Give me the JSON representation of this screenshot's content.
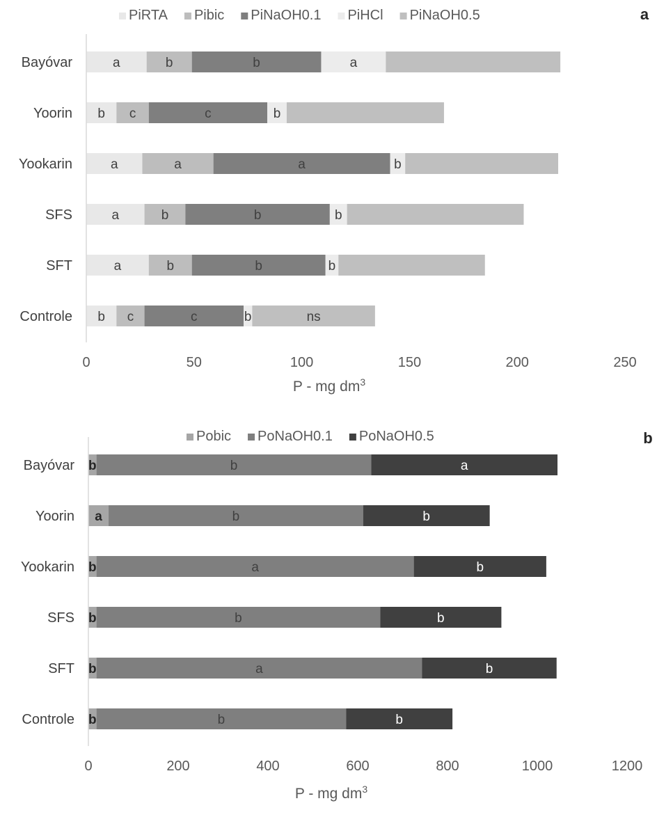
{
  "chart_data": [
    {
      "type": "bar",
      "orientation": "horizontal",
      "stacked": true,
      "panel_label": "a",
      "title": "",
      "xlabel": "P - mg dm",
      "xlabel_superscript": "3",
      "ylabel": "",
      "xlim": [
        0,
        250
      ],
      "xticks": [
        0,
        50,
        100,
        150,
        200,
        250
      ],
      "grid": false,
      "legend_position": "top",
      "categories": [
        "Bayóvar",
        "Yoorin",
        "Yookarin",
        "SFS",
        "SFT",
        "Controle"
      ],
      "series": [
        {
          "name": "PiRTA",
          "color": "#e8e8e8",
          "label_color": "#404040",
          "values": [
            28,
            14,
            26,
            27,
            29,
            14
          ],
          "labels": [
            "a",
            "b",
            "a",
            "a",
            "a",
            "b"
          ]
        },
        {
          "name": "Pibic",
          "color": "#bdbdbd",
          "label_color": "#404040",
          "values": [
            21,
            15,
            33,
            19,
            20,
            13
          ],
          "labels": [
            "b",
            "c",
            "a",
            "b",
            "b",
            "c"
          ]
        },
        {
          "name": "PiNaOH0.1",
          "color": "#7f7f7f",
          "label_color": "#404040",
          "values": [
            60,
            55,
            82,
            67,
            62,
            46
          ],
          "labels": [
            "b",
            "c",
            "a",
            "b",
            "b",
            "c"
          ]
        },
        {
          "name": "PiHCl",
          "color": "#ececec",
          "label_color": "#404040",
          "values": [
            30,
            9,
            7,
            8,
            6,
            4
          ],
          "labels": [
            "a",
            "b",
            "b",
            "b",
            "b",
            "b"
          ]
        },
        {
          "name": "PiNaOH0.5",
          "color": "#bfbfbf",
          "label_color": "#404040",
          "values": [
            81,
            73,
            71,
            82,
            68,
            57
          ],
          "labels": [
            "",
            "",
            "",
            "",
            "",
            "ns"
          ]
        }
      ]
    },
    {
      "type": "bar",
      "orientation": "horizontal",
      "stacked": true,
      "panel_label": "b",
      "title": "",
      "xlabel": "P - mg dm",
      "xlabel_superscript": "3",
      "ylabel": "",
      "xlim": [
        0,
        1200
      ],
      "xticks": [
        0,
        200,
        400,
        600,
        800,
        1000,
        1200
      ],
      "grid": false,
      "legend_position": "top",
      "categories": [
        "Bayóvar",
        "Yoorin",
        "Yookarin",
        "SFS",
        "SFT",
        "Controle"
      ],
      "series": [
        {
          "name": "Pobic",
          "color": "#a6a6a6",
          "label_color": "#262626",
          "label_bold": true,
          "values": [
            18,
            45,
            18,
            18,
            18,
            18
          ],
          "labels": [
            "b",
            "a",
            "b",
            "b",
            "b",
            "b"
          ]
        },
        {
          "name": "PoNaOH0.1",
          "color": "#7f7f7f",
          "label_color": "#404040",
          "values": [
            612,
            567,
            707,
            632,
            725,
            556
          ],
          "labels": [
            "b",
            "b",
            "a",
            "b",
            "a",
            "b"
          ]
        },
        {
          "name": "PoNaOH0.5",
          "color": "#404040",
          "label_color": "#ffffff",
          "values": [
            415,
            282,
            295,
            270,
            300,
            237
          ],
          "labels": [
            "a",
            "b",
            "b",
            "b",
            "b",
            "b"
          ]
        }
      ]
    }
  ]
}
